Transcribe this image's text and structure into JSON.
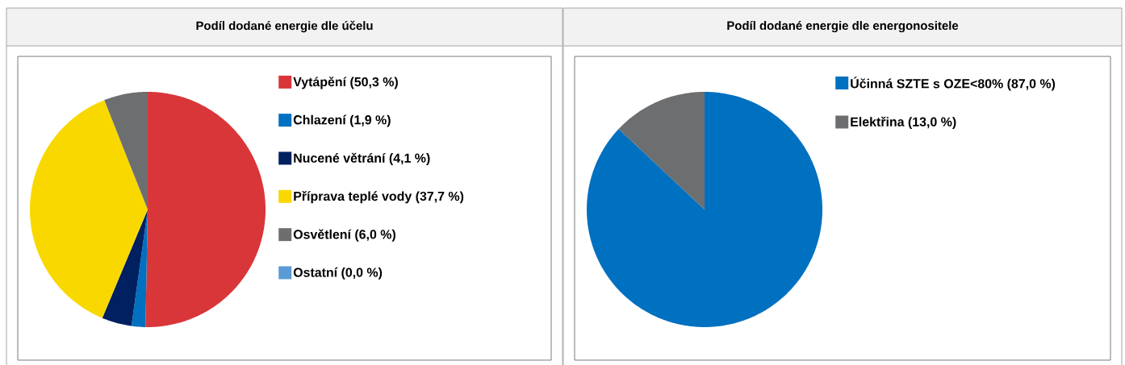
{
  "chart_data": [
    {
      "type": "pie",
      "title": "Podíl dodané energie dle účelu",
      "categories": [
        "Vytápění (50,3 %)",
        "Chlazení (1,9 %)",
        "Nucené větrání (4,1 %)",
        "Příprava teplé vody (37,7 %)",
        "Osvětlení (6,0 %)",
        "Ostatní (0,0 %)"
      ],
      "values": [
        50.3,
        1.9,
        4.1,
        37.7,
        6.0,
        0.0
      ],
      "colors": [
        "#d9363a",
        "#0070c0",
        "#002060",
        "#f9d800",
        "#6d6e70",
        "#5b9bd5"
      ],
      "legend": "right"
    },
    {
      "type": "pie",
      "title": "Podíl dodané energie dle energonositele",
      "categories": [
        "Účinná SZTE s OZE<80% (87,0 %)",
        "Elektřina (13,0 %)"
      ],
      "values": [
        87.0,
        13.0
      ],
      "colors": [
        "#0070c0",
        "#6d6e70"
      ],
      "legend": "top right"
    }
  ]
}
